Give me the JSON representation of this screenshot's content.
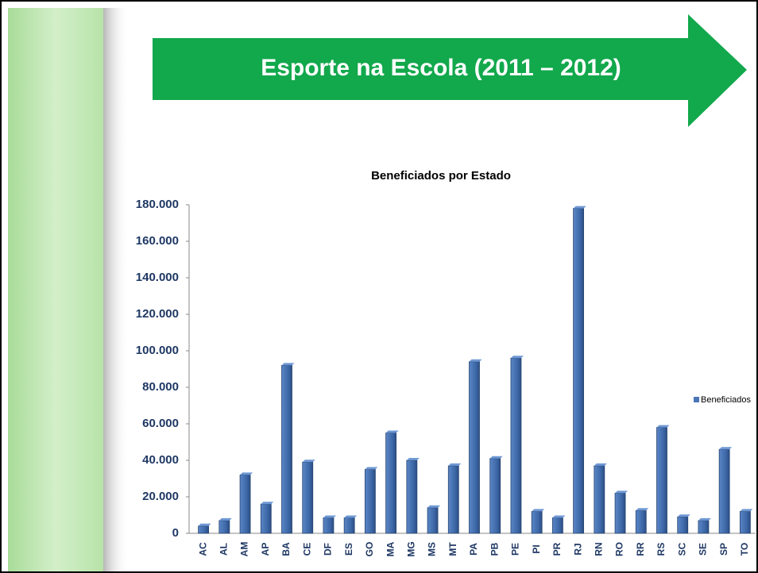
{
  "chart_data": {
    "type": "bar",
    "heading": "Esporte na Escola (2011 – 2012)",
    "title": "Beneficiados por Estado",
    "categories": [
      "AC",
      "AL",
      "AM",
      "AP",
      "BA",
      "CE",
      "DF",
      "ES",
      "GO",
      "MA",
      "MG",
      "MS",
      "MT",
      "PA",
      "PB",
      "PE",
      "PI",
      "PR",
      "RJ",
      "RN",
      "RO",
      "RR",
      "RS",
      "SC",
      "SE",
      "SP",
      "TO"
    ],
    "series": [
      {
        "name": "Beneficiados",
        "color": "#4a76b8",
        "values": [
          4000,
          7000,
          32000,
          16000,
          92000,
          39000,
          8500,
          8500,
          35000,
          55000,
          40000,
          14000,
          37000,
          94000,
          41000,
          96000,
          12000,
          8500,
          178000,
          37000,
          22000,
          12500,
          58000,
          9000,
          7000,
          46000,
          12000
        ]
      }
    ],
    "ylim": [
      0,
      180000
    ],
    "yticks": [
      0,
      {
        "value": 20000,
        "label": "20.000"
      },
      {
        "value": 40000,
        "label": "40.000"
      },
      {
        "value": 60000,
        "label": "60.000"
      },
      {
        "value": 80000,
        "label": "80.000"
      },
      {
        "value": 100000,
        "label": "100.000"
      },
      {
        "value": 120000,
        "label": "120.000"
      },
      {
        "value": 140000,
        "label": "140.000"
      },
      {
        "value": 160000,
        "label": "160.000"
      },
      {
        "value": 180000,
        "label": "180.000"
      }
    ],
    "legend": "right"
  }
}
